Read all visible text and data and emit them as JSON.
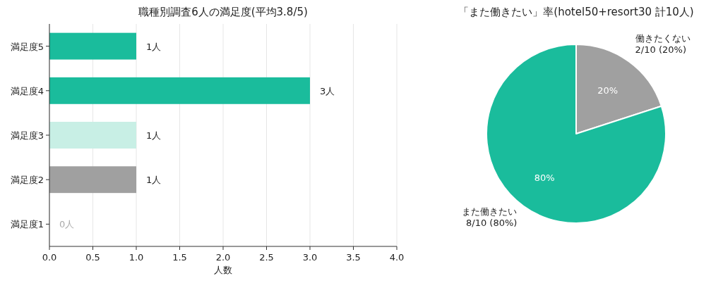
{
  "chart_data": [
    {
      "type": "bar",
      "orientation": "horizontal",
      "title": "職種別調査6人の満足度(平均3.8/5)",
      "xlabel": "人数",
      "categories": [
        "満足度5",
        "満足度4",
        "満足度3",
        "満足度2",
        "満足度1"
      ],
      "values": [
        1,
        3,
        1,
        1,
        0
      ],
      "colors": [
        "#1abc9c",
        "#1abc9c",
        "#c8efe5",
        "#a0a0a0",
        "#a0a0a0"
      ],
      "value_labels": [
        "1人",
        "3人",
        "1人",
        "1人",
        "0人"
      ],
      "xlim": [
        0,
        4
      ],
      "xticks": [
        {
          "value": 0,
          "label": "0.0"
        },
        0.5,
        {
          "value": 1,
          "label": "1.0"
        },
        1.5,
        {
          "value": 2,
          "label": "2.0"
        },
        2.5,
        {
          "value": 3,
          "label": "3.0"
        },
        3.5,
        {
          "value": 4,
          "label": "4.0"
        }
      ],
      "grid": "x"
    },
    {
      "type": "pie",
      "title": "「また働きたい」率(hotel50+resort30 計10人)",
      "categories": [
        "働きたくない\n2/10 (20%)",
        "また働きたい\n8/10 (80%)"
      ],
      "values": [
        20,
        80
      ],
      "colors": [
        "#a0a0a0",
        "#1abc9c"
      ],
      "value_labels": [
        "20%",
        "80%"
      ]
    }
  ]
}
